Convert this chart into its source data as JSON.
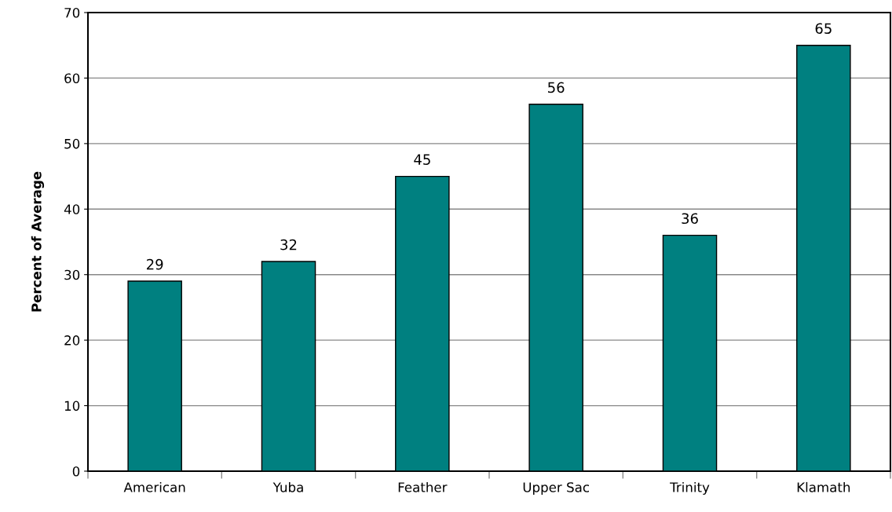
{
  "chart_data": {
    "type": "bar",
    "ylabel": "Percent of Average",
    "categories": [
      "American",
      "Yuba",
      "Feather",
      "Upper Sac",
      "Trinity",
      "Klamath"
    ],
    "values": [
      29,
      32,
      45,
      56,
      36,
      65
    ],
    "color": "#008080",
    "ylim": [
      0,
      70
    ],
    "yticks": [
      0,
      10,
      20,
      30,
      40,
      50,
      60,
      70
    ],
    "grid": "y",
    "data_labels": true
  }
}
